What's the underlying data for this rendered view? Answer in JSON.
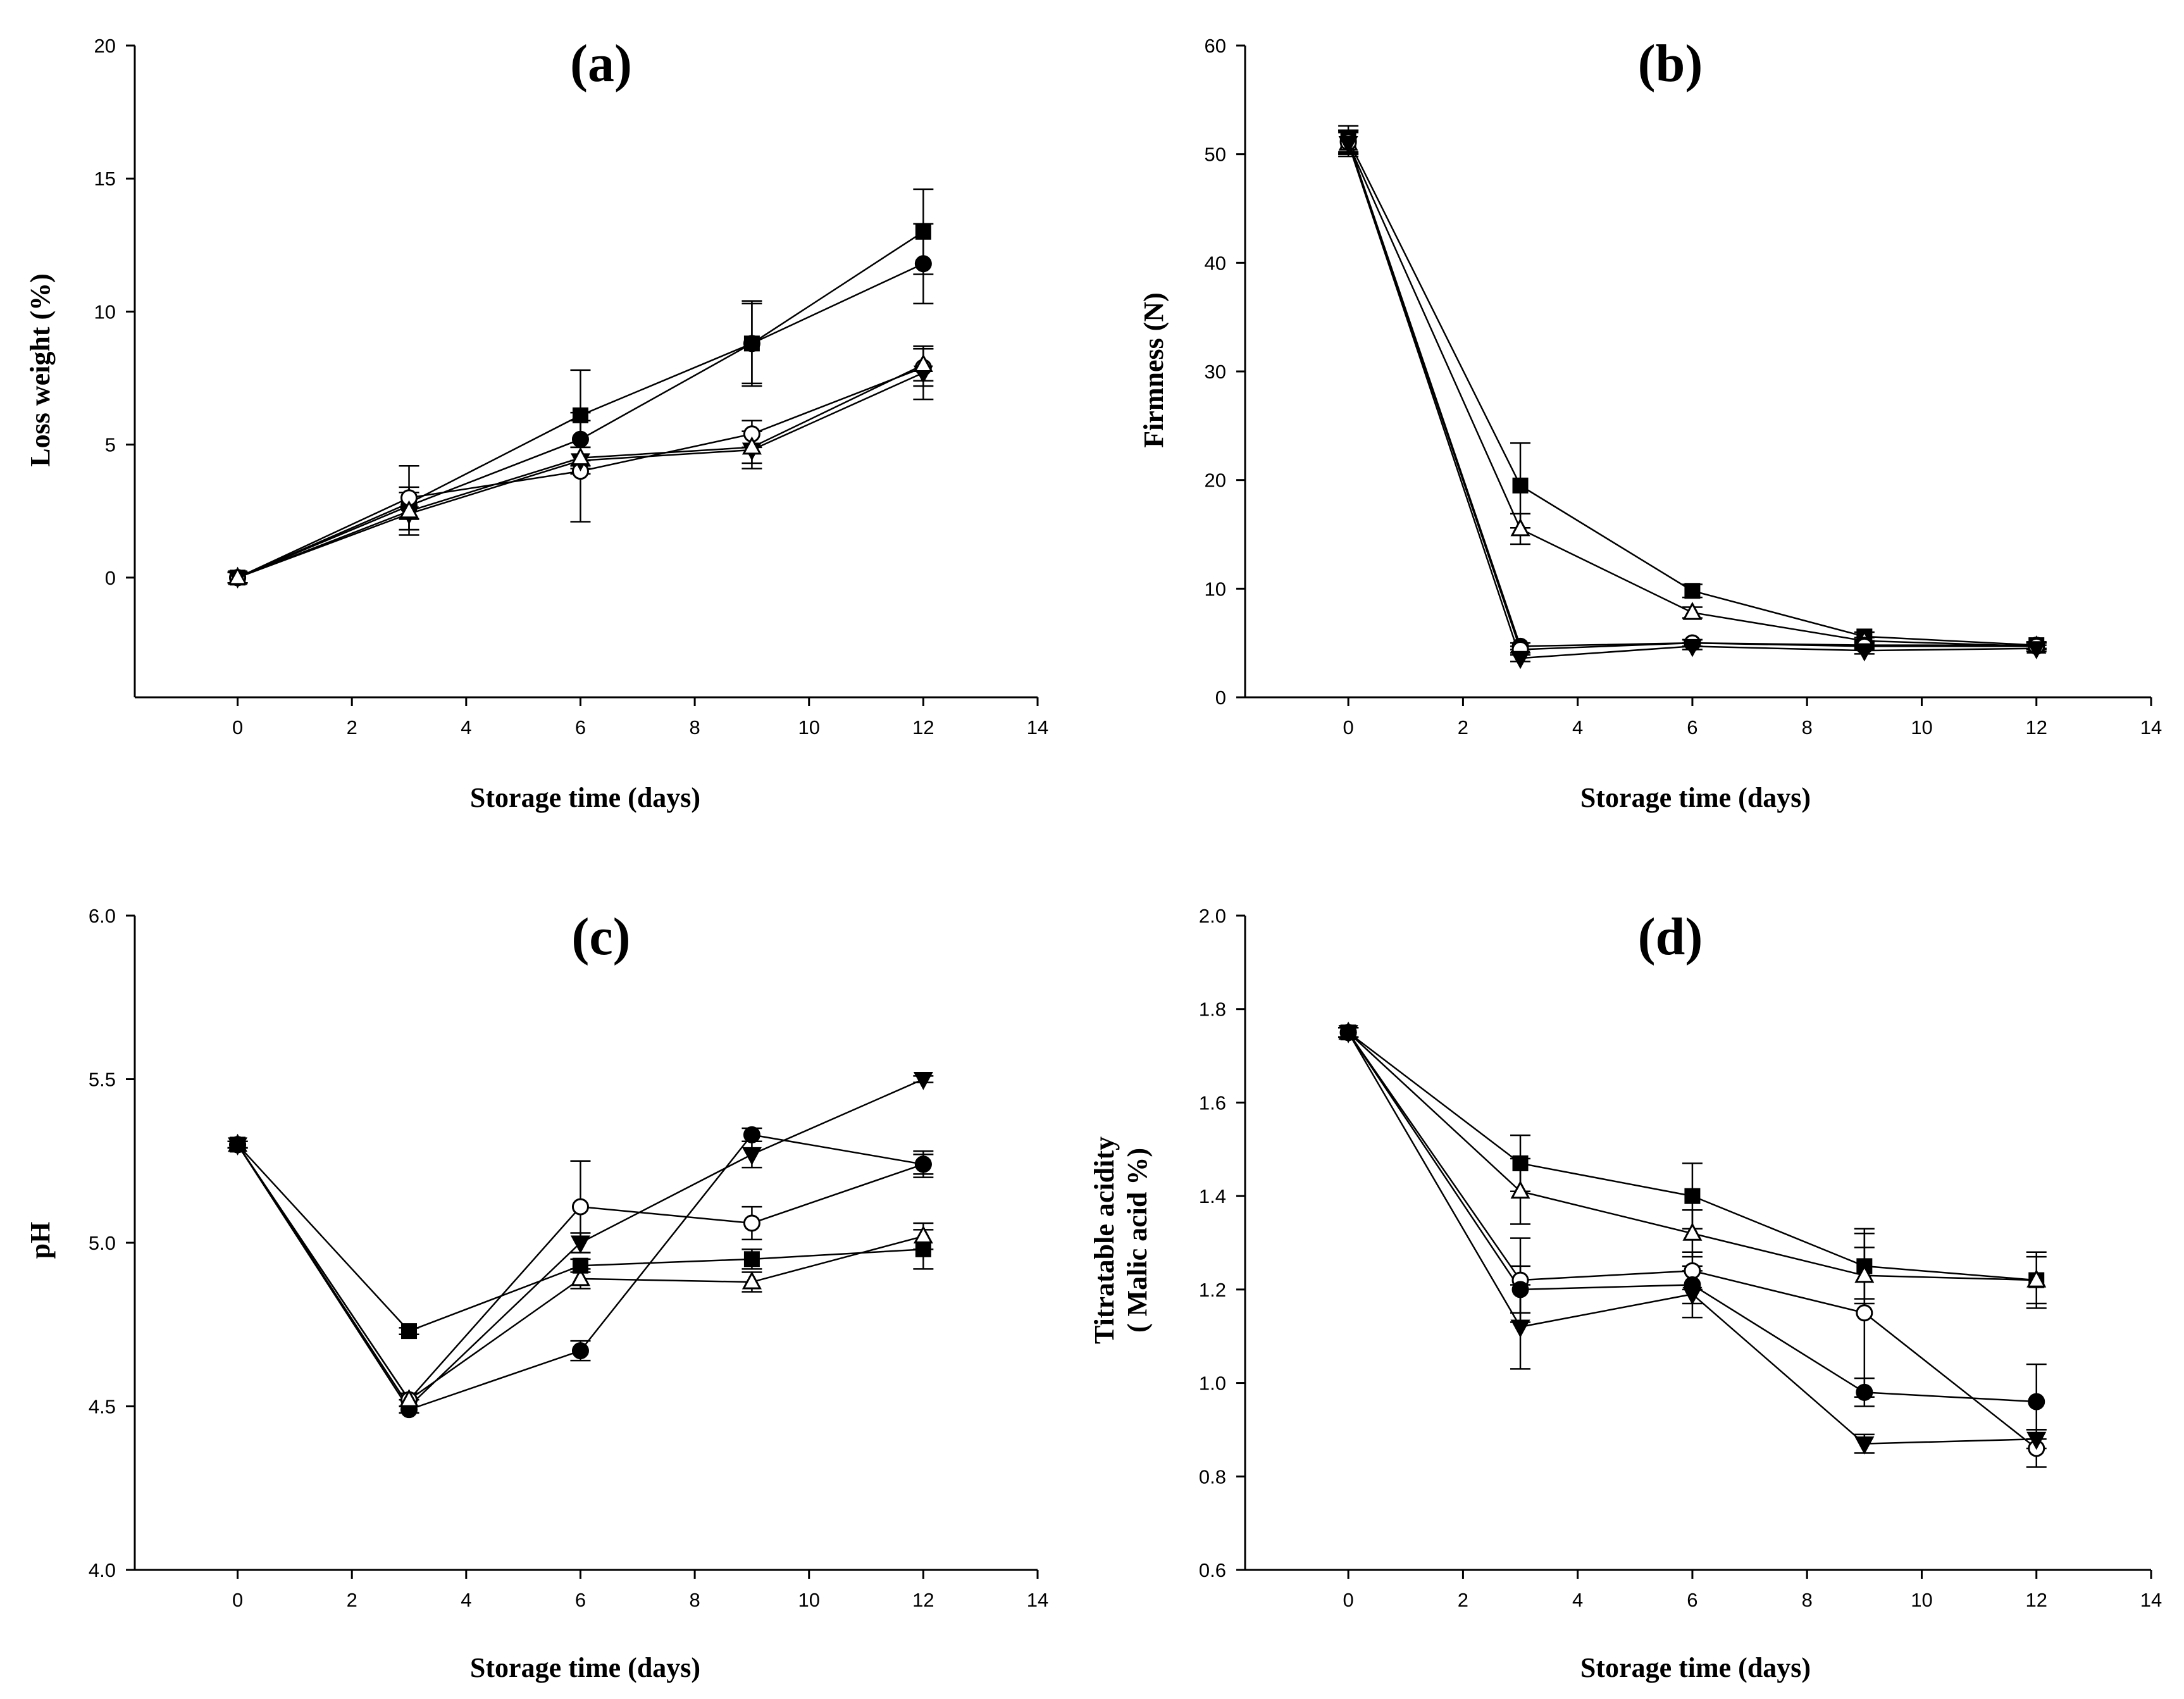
{
  "chart_data": [
    {
      "id": "a",
      "type": "line",
      "title": "(a)",
      "xlabel": "Storage time (days)",
      "ylabel": [
        "Loss weight (%)"
      ],
      "xlim": [
        -1.8,
        14
      ],
      "ylim": [
        -4.5,
        20
      ],
      "xticks": [
        0,
        2,
        4,
        6,
        8,
        10,
        12,
        14
      ],
      "yticks": [
        0,
        5,
        10,
        15,
        20
      ],
      "x": [
        0,
        3,
        6,
        9,
        12
      ],
      "series": [
        {
          "marker": "square-filled",
          "values": [
            0,
            2.8,
            6.1,
            8.8,
            13.0
          ],
          "errors": [
            0.2,
            0.6,
            1.7,
            1.5,
            1.6
          ]
        },
        {
          "marker": "circle-filled",
          "values": [
            0,
            2.7,
            5.2,
            8.8,
            11.8
          ],
          "errors": [
            0.2,
            0.5,
            1.0,
            1.6,
            1.5
          ]
        },
        {
          "marker": "circle-open",
          "values": [
            0,
            3.0,
            4.0,
            5.4,
            7.9
          ],
          "errors": [
            0.2,
            1.2,
            1.9,
            0.5,
            0.7
          ]
        },
        {
          "marker": "triangle-down-filled",
          "values": [
            0,
            2.4,
            4.4,
            4.8,
            7.7
          ],
          "errors": [
            0.2,
            0.8,
            0.5,
            0.7,
            1.0
          ]
        },
        {
          "marker": "triangle-up-open",
          "values": [
            0,
            2.5,
            4.5,
            4.9,
            8.0
          ],
          "errors": [
            0.2,
            0.7,
            0.4,
            0.6,
            0.6
          ]
        }
      ]
    },
    {
      "id": "b",
      "type": "line",
      "title": "(b)",
      "xlabel": "Storage time (days)",
      "ylabel": [
        "Firmness (N)"
      ],
      "xlim": [
        -1.8,
        14
      ],
      "ylim": [
        0,
        60
      ],
      "xticks": [
        0,
        2,
        4,
        6,
        8,
        10,
        12,
        14
      ],
      "yticks": [
        0,
        10,
        20,
        30,
        40,
        50,
        60
      ],
      "x": [
        0,
        3,
        6,
        9,
        12
      ],
      "series": [
        {
          "marker": "square-filled",
          "values": [
            51.3,
            19.5,
            9.8,
            5.6,
            4.8
          ],
          "errors": [
            1.3,
            3.9,
            0.6,
            0.4,
            0.3
          ]
        },
        {
          "marker": "triangle-up-open",
          "values": [
            51.0,
            15.5,
            7.8,
            5.2,
            4.7
          ],
          "errors": [
            1.2,
            1.4,
            0.5,
            0.3,
            0.3
          ]
        },
        {
          "marker": "circle-filled",
          "values": [
            51.2,
            4.7,
            5.0,
            4.8,
            4.8
          ],
          "errors": [
            1.0,
            0.3,
            0.3,
            0.3,
            0.3
          ]
        },
        {
          "marker": "circle-open",
          "values": [
            51.1,
            4.4,
            5.0,
            4.7,
            4.7
          ],
          "errors": [
            1.0,
            0.3,
            0.3,
            0.3,
            0.3
          ]
        },
        {
          "marker": "triangle-down-filled",
          "values": [
            51.0,
            3.6,
            4.7,
            4.3,
            4.5
          ],
          "errors": [
            1.0,
            0.3,
            0.3,
            0.3,
            0.3
          ]
        }
      ]
    },
    {
      "id": "c",
      "type": "line",
      "title": "(c)",
      "xlabel": "Storage time (days)",
      "ylabel": [
        "pH"
      ],
      "xlim": [
        -1.8,
        14
      ],
      "ylim": [
        4.0,
        6.0
      ],
      "xticks": [
        0,
        2,
        4,
        6,
        8,
        10,
        12,
        14
      ],
      "yticks": [
        4.0,
        4.5,
        5.0,
        5.5,
        6.0
      ],
      "x": [
        0,
        3,
        6,
        9,
        12
      ],
      "series": [
        {
          "marker": "triangle-down-filled",
          "values": [
            5.3,
            4.5,
            5.0,
            5.27,
            5.5
          ],
          "errors": [
            0.01,
            0.02,
            0.03,
            0.04,
            0.01
          ]
        },
        {
          "marker": "circle-open",
          "values": [
            5.3,
            4.52,
            5.11,
            5.06,
            5.24
          ],
          "errors": [
            0.01,
            0.02,
            0.14,
            0.05,
            0.04
          ]
        },
        {
          "marker": "circle-filled",
          "values": [
            5.3,
            4.49,
            4.67,
            5.33,
            5.24
          ],
          "errors": [
            0.01,
            0.01,
            0.03,
            0.02,
            0.03
          ]
        },
        {
          "marker": "triangle-up-open",
          "values": [
            5.3,
            4.52,
            4.89,
            4.88,
            5.02
          ],
          "errors": [
            0.01,
            0.02,
            0.03,
            0.03,
            0.04
          ]
        },
        {
          "marker": "square-filled",
          "values": [
            5.3,
            4.73,
            4.93,
            4.95,
            4.98
          ],
          "errors": [
            0.01,
            0.01,
            0.02,
            0.03,
            0.06
          ]
        }
      ]
    },
    {
      "id": "d",
      "type": "line",
      "title": "(d)",
      "xlabel": "Storage time (days)",
      "ylabel": [
        "Titratable acidity",
        "( Malic acid %)"
      ],
      "xlim": [
        -1.8,
        14
      ],
      "ylim": [
        0.6,
        2.0
      ],
      "xticks": [
        0,
        2,
        4,
        6,
        8,
        10,
        12,
        14
      ],
      "yticks": [
        0.6,
        0.8,
        1.0,
        1.2,
        1.4,
        1.6,
        1.8,
        2.0
      ],
      "x": [
        0,
        3,
        6,
        9,
        12
      ],
      "series": [
        {
          "marker": "square-filled",
          "values": [
            1.75,
            1.47,
            1.4,
            1.25,
            1.22
          ],
          "errors": [
            0.01,
            0.06,
            0.07,
            0.07,
            0.06
          ]
        },
        {
          "marker": "triangle-up-open",
          "values": [
            1.75,
            1.41,
            1.32,
            1.23,
            1.22
          ],
          "errors": [
            0.01,
            0.07,
            0.05,
            0.06,
            0.05
          ]
        },
        {
          "marker": "circle-open",
          "values": [
            1.75,
            1.22,
            1.24,
            1.15,
            0.86
          ],
          "errors": [
            0.01,
            0.09,
            0.04,
            0.18,
            0.04
          ]
        },
        {
          "marker": "circle-filled",
          "values": [
            1.75,
            1.2,
            1.21,
            0.98,
            0.96
          ],
          "errors": [
            0.01,
            0.05,
            0.04,
            0.03,
            0.08
          ]
        },
        {
          "marker": "triangle-down-filled",
          "values": [
            1.75,
            1.12,
            1.19,
            0.87,
            0.88
          ],
          "errors": [
            0.01,
            0.09,
            0.05,
            0.02,
            0.02
          ]
        }
      ]
    }
  ]
}
